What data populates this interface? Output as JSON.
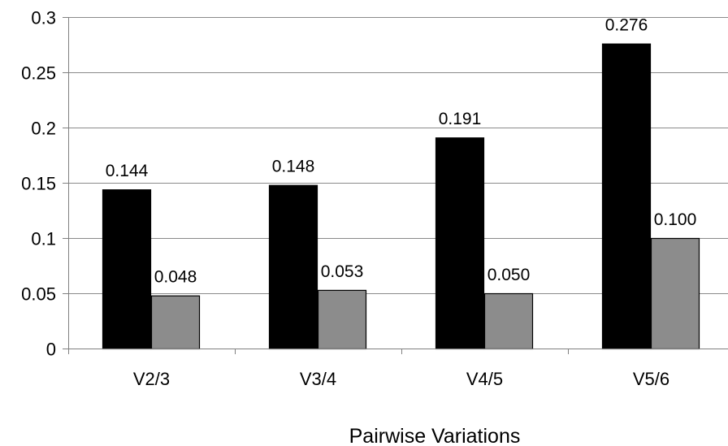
{
  "chart_data": {
    "type": "bar",
    "title": "",
    "xlabel": "Pairwise Variations",
    "ylabel": "",
    "categories": [
      "V2/3",
      "V3/4",
      "V4/5",
      "V5/6"
    ],
    "series": [
      {
        "color": "#000000",
        "values": [
          0.144,
          0.148,
          0.191,
          0.276
        ],
        "labels": [
          "0.144",
          "0.148",
          "0.191",
          "0.276"
        ]
      },
      {
        "color": "#8c8c8c",
        "values": [
          0.048,
          0.053,
          0.05,
          0.1
        ],
        "labels": [
          "0.048",
          "0.053",
          "0.050",
          "0.100"
        ]
      }
    ],
    "ylim": [
      0,
      0.3
    ],
    "yticks": [
      0,
      0.05,
      0.1,
      0.15,
      0.2,
      0.25,
      0.3
    ],
    "ytick_labels": [
      "0",
      "0.05",
      "0.1",
      "0.15",
      "0.2",
      "0.25",
      "0.3"
    ],
    "grid": true,
    "legend": "none"
  }
}
